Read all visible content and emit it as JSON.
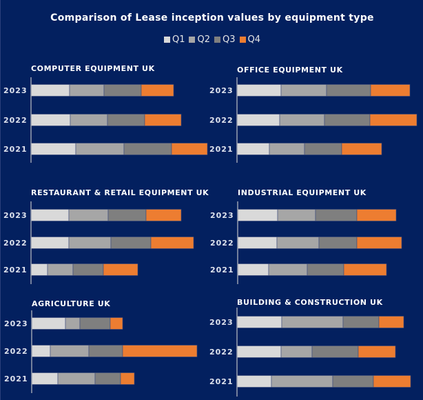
{
  "chart_data": {
    "type": "bar",
    "orientation": "horizontal-stacked",
    "title": "Comparison of Lease inception values by equipment type",
    "legend": {
      "placement": "top-center",
      "entries": [
        {
          "name": "Q1",
          "color": "#d9d9d9"
        },
        {
          "name": "Q2",
          "color": "#a6a6a6"
        },
        {
          "name": "Q3",
          "color": "#7f7f7f"
        },
        {
          "name": "Q4",
          "color": "#ed7d31"
        }
      ]
    },
    "series_names": [
      "Q1",
      "Q2",
      "Q3",
      "Q4"
    ],
    "value_note": "No axis values shown; values are relative segment lengths",
    "xlim": [
      0,
      260
    ],
    "grid": false,
    "panels": [
      {
        "title": "COMPUTER EQUIPMENT UK",
        "categories": [
          "2023",
          "2022",
          "2021"
        ],
        "series": [
          {
            "name": "Q1",
            "values": [
              56,
              57,
              65
            ]
          },
          {
            "name": "Q2",
            "values": [
              50,
              54,
              70
            ]
          },
          {
            "name": "Q3",
            "values": [
              54,
              54,
              69
            ]
          },
          {
            "name": "Q4",
            "values": [
              47,
              53,
              52
            ]
          }
        ]
      },
      {
        "title": "OFFICE EQUIPMENT UK",
        "categories": [
          "2023",
          "2022",
          "2021"
        ],
        "series": [
          {
            "name": "Q1",
            "values": [
              64,
              62,
              47
            ]
          },
          {
            "name": "Q2",
            "values": [
              66,
              65,
              51
            ]
          },
          {
            "name": "Q3",
            "values": [
              64,
              66,
              54
            ]
          },
          {
            "name": "Q4",
            "values": [
              57,
              68,
              58
            ]
          }
        ]
      },
      {
        "title": "RESTAURANT & RETAIL EQUIPMENT UK",
        "categories": [
          "2023",
          "2022",
          "2021"
        ],
        "series": [
          {
            "name": "Q1",
            "values": [
              55,
              55,
              24
            ]
          },
          {
            "name": "Q2",
            "values": [
              57,
              61,
              37
            ]
          },
          {
            "name": "Q3",
            "values": [
              55,
              58,
              44
            ]
          },
          {
            "name": "Q4",
            "values": [
              51,
              62,
              50
            ]
          }
        ]
      },
      {
        "title": "INDUSTRIAL EQUIPMENT UK",
        "categories": [
          "2023",
          "2022",
          "2021"
        ],
        "series": [
          {
            "name": "Q1",
            "values": [
              58,
              57,
              45
            ]
          },
          {
            "name": "Q2",
            "values": [
              55,
              61,
              56
            ]
          },
          {
            "name": "Q3",
            "values": [
              60,
              55,
              53
            ]
          },
          {
            "name": "Q4",
            "values": [
              57,
              65,
              62
            ]
          }
        ]
      },
      {
        "title": "AGRICULTURE UK",
        "categories": [
          "2023",
          "2022",
          "2021"
        ],
        "series": [
          {
            "name": "Q1",
            "values": [
              49,
              27,
              38
            ]
          },
          {
            "name": "Q2",
            "values": [
              21,
              56,
              54
            ]
          },
          {
            "name": "Q3",
            "values": [
              44,
              49,
              37
            ]
          },
          {
            "name": "Q4",
            "values": [
              18,
              108,
              20
            ]
          }
        ]
      },
      {
        "title": "BUILDING & CONSTRUCTION UK",
        "categories": [
          "2023",
          "2022",
          "2021"
        ],
        "series": [
          {
            "name": "Q1",
            "values": [
              65,
              64,
              50
            ]
          },
          {
            "name": "Q2",
            "values": [
              89,
              45,
              89
            ]
          },
          {
            "name": "Q3",
            "values": [
              52,
              67,
              59
            ]
          },
          {
            "name": "Q4",
            "values": [
              36,
              54,
              54
            ]
          }
        ]
      }
    ]
  }
}
